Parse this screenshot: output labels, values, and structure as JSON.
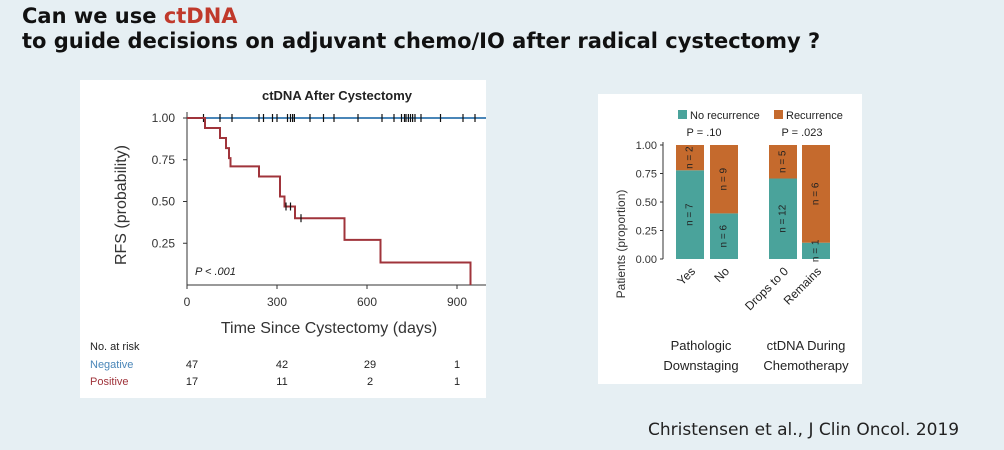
{
  "title": {
    "line1_prefix": "Can we use ",
    "line1_highlight": "ctDNA",
    "line2": "to guide decisions on adjuvant chemo/IO after radical cystectomy ?"
  },
  "citation": "Christensen et al., J Clin Oncol. 2019",
  "chart_data": [
    {
      "type": "line",
      "title": "ctDNA After Cystectomy",
      "xlabel": "Time Since Cystectomy (days)",
      "ylabel": "RFS (probability)",
      "xlim": [
        0,
        1000
      ],
      "ylim": [
        0,
        1.0
      ],
      "xticks": [
        "0",
        "300",
        "600",
        "900"
      ],
      "yticks": [
        "1.00",
        "0.75",
        "0.50",
        "0.25"
      ],
      "pvalue": "P < .001",
      "series": [
        {
          "name": "Negative",
          "color": "#4a86b8",
          "steps": [
            [
              0,
              1.0
            ],
            [
              1000,
              1.0
            ]
          ],
          "censor_x": [
            55,
            110,
            150,
            240,
            255,
            285,
            300,
            335,
            345,
            352,
            358,
            410,
            455,
            490,
            570,
            650,
            690,
            715,
            725,
            730,
            738,
            745,
            752,
            760,
            780,
            845,
            920,
            960
          ]
        },
        {
          "name": "Positive",
          "color": "#a0343b",
          "steps": [
            [
              0,
              1.0
            ],
            [
              60,
              1.0
            ],
            [
              60,
              0.94
            ],
            [
              110,
              0.94
            ],
            [
              110,
              0.88
            ],
            [
              130,
              0.88
            ],
            [
              130,
              0.82
            ],
            [
              140,
              0.82
            ],
            [
              140,
              0.76
            ],
            [
              145,
              0.76
            ],
            [
              145,
              0.71
            ],
            [
              240,
              0.71
            ],
            [
              240,
              0.65
            ],
            [
              310,
              0.65
            ],
            [
              310,
              0.53
            ],
            [
              325,
              0.53
            ],
            [
              325,
              0.47
            ],
            [
              360,
              0.47
            ],
            [
              360,
              0.4
            ],
            [
              525,
              0.4
            ],
            [
              525,
              0.27
            ],
            [
              645,
              0.27
            ],
            [
              645,
              0.135
            ],
            [
              945,
              0.135
            ],
            [
              945,
              0.0
            ]
          ],
          "censor_x": [
            330,
            345,
            380
          ]
        }
      ],
      "risk_table": {
        "header": "No. at risk",
        "rows": [
          {
            "label": "Negative",
            "color": "#4a86b8",
            "values": [
              "47",
              "42",
              "29",
              "1"
            ]
          },
          {
            "label": "Positive",
            "color": "#a0343b",
            "values": [
              "17",
              "11",
              "2",
              "1"
            ]
          }
        ]
      }
    },
    {
      "type": "bar",
      "stacked": true,
      "ylabel": "Patients (proportion)",
      "ylim": [
        0,
        1.0
      ],
      "yticks": [
        "1.00",
        "0.75",
        "0.50",
        "0.25",
        "0.00"
      ],
      "legend": [
        {
          "name": "No recurrence",
          "color": "#4aa39b"
        },
        {
          "name": "Recurrence",
          "color": "#c56a2d"
        }
      ],
      "groups": [
        {
          "label_line1": "Pathologic",
          "label_line2": "Downstaging",
          "pvalue": "P = .10"
        },
        {
          "label_line1": "ctDNA During",
          "label_line2": "Chemotherapy",
          "pvalue": "P = .023"
        }
      ],
      "categories": [
        "Yes",
        "No",
        "Drops to 0",
        "Remains"
      ],
      "series": [
        {
          "name": "No recurrence",
          "values": [
            0.778,
            0.4,
            0.706,
            0.143
          ],
          "counts": [
            "n = 7",
            "n = 6",
            "n = 12",
            "n = 1"
          ]
        },
        {
          "name": "Recurrence",
          "values": [
            0.222,
            0.6,
            0.294,
            0.857
          ],
          "counts": [
            "n = 2",
            "n = 9",
            "n = 5",
            "n = 6"
          ]
        }
      ]
    }
  ]
}
